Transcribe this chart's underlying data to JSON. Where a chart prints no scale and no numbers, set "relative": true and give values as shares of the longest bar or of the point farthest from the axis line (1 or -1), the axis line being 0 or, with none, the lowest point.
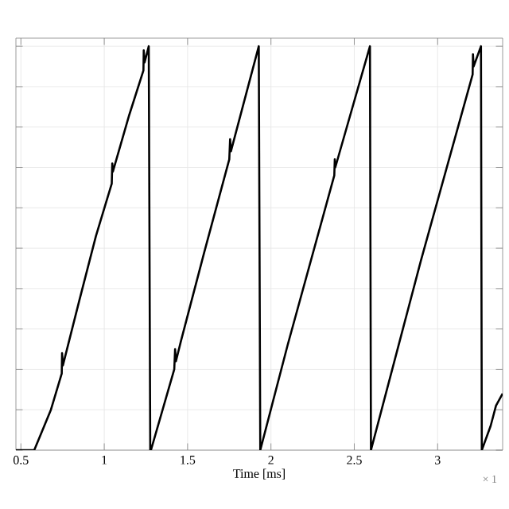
{
  "chart_data": {
    "type": "line",
    "xlabel": "Time [ms]",
    "relative": true,
    "grid": true,
    "tick_labels": "x",
    "marker": "none",
    "line_style": "solid",
    "xlim": [
      0.47,
      3.39
    ],
    "xticks": [
      {
        "value": 0.5,
        "label": "0.5"
      },
      1,
      1.5,
      2,
      2.5,
      3
    ],
    "annotations": [
      "× 1"
    ],
    "series": [
      {
        "color": "#000000",
        "x": [
          0.47,
          0.58,
          0.62,
          0.68,
          0.745,
          0.747,
          0.752,
          0.85,
          0.95,
          1.045,
          1.048,
          1.052,
          1.15,
          1.235,
          1.237,
          1.242,
          1.267,
          1.276,
          1.28,
          1.42,
          1.425,
          1.43,
          1.46,
          1.6,
          1.75,
          1.755,
          1.76,
          1.927,
          1.936,
          2.1,
          2.38,
          2.383,
          2.386,
          2.594,
          2.6,
          2.9,
          3.21,
          3.212,
          3.216,
          3.26,
          3.265,
          3.318,
          3.35,
          3.39
        ],
        "values": [
          0,
          0,
          0.04,
          0.1,
          0.19,
          0.24,
          0.21,
          0.37,
          0.53,
          0.66,
          0.71,
          0.69,
          0.83,
          0.94,
          0.99,
          0.96,
          1,
          0,
          0,
          0.2,
          0.25,
          0.22,
          0.27,
          0.49,
          0.72,
          0.77,
          0.74,
          1,
          0,
          0.26,
          0.68,
          0.72,
          0.7,
          1,
          0,
          0.47,
          0.93,
          0.98,
          0.95,
          1,
          0,
          0.06,
          0.11,
          0.14
        ]
      }
    ]
  }
}
